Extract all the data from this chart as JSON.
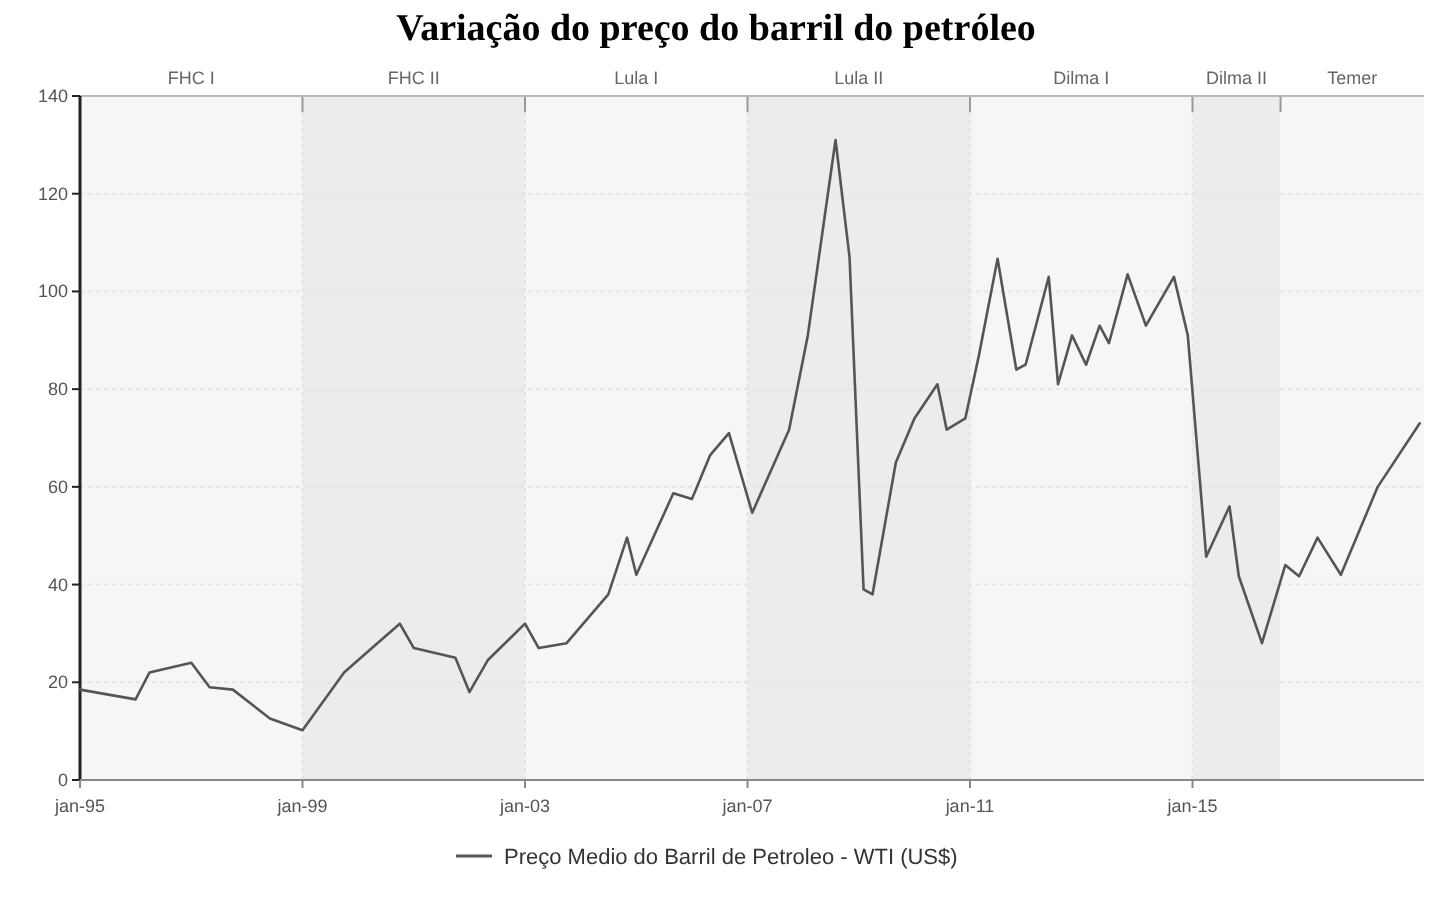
{
  "chart_data": {
    "type": "line",
    "title": "Variação do preço do barril do petróleo",
    "x": [
      "1995-01",
      "1996-01",
      "1996-04",
      "1997-01",
      "1997-05",
      "1997-10",
      "1998-06",
      "1999-01",
      "1999-10",
      "2000-04",
      "2000-10",
      "2001-01",
      "2001-10",
      "2002-01",
      "2002-05",
      "2003-01",
      "2003-04",
      "2003-10",
      "2004-07",
      "2004-11",
      "2005-01",
      "2005-09",
      "2006-01",
      "2006-05",
      "2006-09",
      "2007-02",
      "2007-10",
      "2008-02",
      "2008-08",
      "2008-11",
      "2009-02",
      "2009-04",
      "2009-09",
      "2010-01",
      "2010-06",
      "2010-08",
      "2010-12",
      "2011-03",
      "2011-07",
      "2011-11",
      "2012-01",
      "2012-06",
      "2012-08",
      "2012-11",
      "2013-02",
      "2013-05",
      "2013-07",
      "2013-11",
      "2014-03",
      "2014-09",
      "2014-12",
      "2015-04",
      "2015-09",
      "2015-11",
      "2016-04",
      "2016-09",
      "2016-12",
      "2017-04",
      "2017-09",
      "2018-05",
      "2019-02"
    ],
    "series": [
      {
        "name": "Preço Medio do Barril de Petroleo - WTI (US$)",
        "color": "#555555",
        "values": [
          18.5,
          16.5,
          22,
          24,
          19,
          18.5,
          12.6,
          10.2,
          22,
          27,
          32,
          27,
          25,
          18,
          24.5,
          32,
          27,
          28,
          38,
          49.6,
          42,
          58.7,
          57.5,
          66.5,
          71,
          54.7,
          71.7,
          91,
          131,
          107,
          39,
          38,
          65,
          74,
          81,
          71.7,
          74,
          87,
          106.7,
          84,
          85,
          103,
          81,
          91,
          85,
          93,
          89.4,
          103.5,
          93,
          103,
          91,
          45.7,
          56,
          41.7,
          28,
          44,
          41.7,
          49.6,
          42,
          60,
          73
        ]
      }
    ],
    "xlim": [
      "1995-01",
      "2019-03"
    ],
    "xticks": [
      {
        "value": "1995-01",
        "label": "jan-95"
      },
      {
        "value": "1999-01",
        "label": "jan-99"
      },
      {
        "value": "2003-01",
        "label": "jan-03"
      },
      {
        "value": "2007-01",
        "label": "jan-07"
      },
      {
        "value": "2011-01",
        "label": "jan-11"
      },
      {
        "value": "2015-01",
        "label": "jan-15"
      }
    ],
    "ylim": [
      0,
      140
    ],
    "yticks": [
      0,
      20,
      40,
      60,
      80,
      100,
      120,
      140
    ],
    "bands": [
      {
        "axis": "x",
        "from": "1995-01",
        "to": "1999-01",
        "label": "FHC I",
        "color": "#f6f6f6"
      },
      {
        "axis": "x",
        "from": "1999-01",
        "to": "2003-01",
        "label": "FHC II",
        "color": "#ececec"
      },
      {
        "axis": "x",
        "from": "2003-01",
        "to": "2007-01",
        "label": "Lula I",
        "color": "#f6f6f6"
      },
      {
        "axis": "x",
        "from": "2007-01",
        "to": "2011-01",
        "label": "Lula II",
        "color": "#ececec"
      },
      {
        "axis": "x",
        "from": "2011-01",
        "to": "2015-01",
        "label": "Dilma I",
        "color": "#f6f6f6"
      },
      {
        "axis": "x",
        "from": "2015-01",
        "to": "2016-08",
        "label": "Dilma II",
        "color": "#ececec"
      },
      {
        "axis": "x",
        "from": "2016-08",
        "to": "2019-03",
        "label": "Temer",
        "color": "#f6f6f6"
      }
    ],
    "grid": true,
    "legend": "bottom",
    "marker": "none",
    "line_style": "solid"
  }
}
